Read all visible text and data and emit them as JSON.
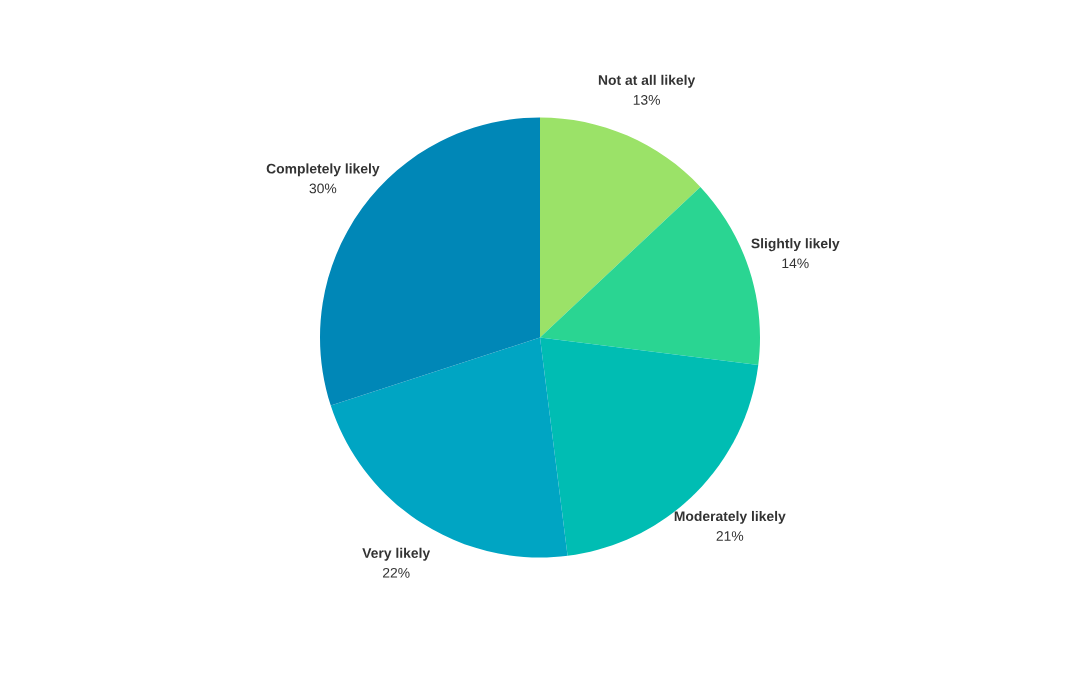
{
  "chart_data": {
    "type": "pie",
    "categories": [
      "Not at all likely",
      "Slightly likely",
      "Moderately likely",
      "Very likely",
      "Completely likely"
    ],
    "values": [
      13,
      14,
      21,
      22,
      30
    ],
    "value_labels": [
      "13%",
      "14%",
      "21%",
      "22%",
      "30%"
    ],
    "colors": [
      "#9be268",
      "#2ad592",
      "#00bdb3",
      "#00a5c3",
      "#0087b7"
    ]
  }
}
